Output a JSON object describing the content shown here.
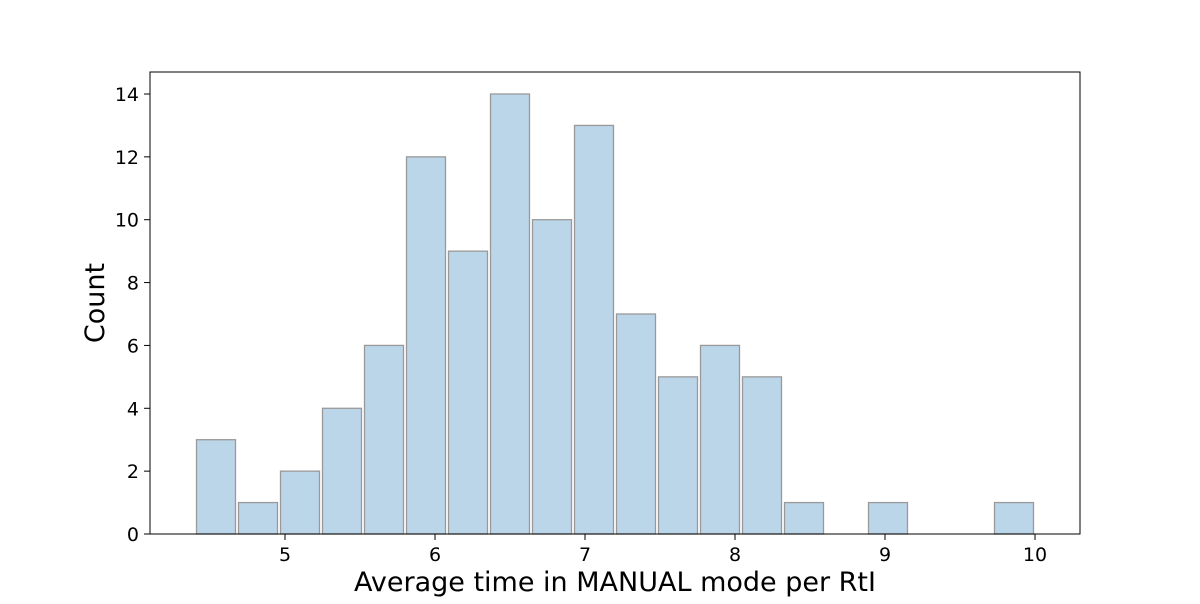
{
  "chart_data": {
    "type": "bar",
    "subtype": "histogram",
    "title": "",
    "xlabel": "Average time in MANUAL mode per RtI",
    "ylabel": "Count",
    "xlim": [
      4.1,
      10.3
    ],
    "ylim": [
      0,
      14.7
    ],
    "x_ticks": [
      5,
      6,
      7,
      8,
      9,
      10
    ],
    "y_ticks": [
      0,
      2,
      4,
      6,
      8,
      10,
      12,
      14
    ],
    "grid": false,
    "legend": "none",
    "bar_color": "#bcd6e9",
    "edge_color": "#999999",
    "bins": [
      {
        "x_start": 4.4,
        "x_end": 4.68,
        "count": 3
      },
      {
        "x_start": 4.68,
        "x_end": 4.96,
        "count": 1
      },
      {
        "x_start": 4.96,
        "x_end": 5.24,
        "count": 2
      },
      {
        "x_start": 5.24,
        "x_end": 5.52,
        "count": 4
      },
      {
        "x_start": 5.52,
        "x_end": 5.8,
        "count": 6
      },
      {
        "x_start": 5.8,
        "x_end": 6.08,
        "count": 12
      },
      {
        "x_start": 6.08,
        "x_end": 6.36,
        "count": 9
      },
      {
        "x_start": 6.36,
        "x_end": 6.64,
        "count": 14
      },
      {
        "x_start": 6.64,
        "x_end": 6.92,
        "count": 10
      },
      {
        "x_start": 6.92,
        "x_end": 7.2,
        "count": 13
      },
      {
        "x_start": 7.2,
        "x_end": 7.48,
        "count": 7
      },
      {
        "x_start": 7.48,
        "x_end": 7.76,
        "count": 5
      },
      {
        "x_start": 7.76,
        "x_end": 8.04,
        "count": 6
      },
      {
        "x_start": 8.04,
        "x_end": 8.32,
        "count": 5
      },
      {
        "x_start": 8.32,
        "x_end": 8.6,
        "count": 1
      },
      {
        "x_start": 8.6,
        "x_end": 8.88,
        "count": 0
      },
      {
        "x_start": 8.88,
        "x_end": 9.16,
        "count": 1
      },
      {
        "x_start": 9.16,
        "x_end": 9.44,
        "count": 0
      },
      {
        "x_start": 9.44,
        "x_end": 9.72,
        "count": 0
      },
      {
        "x_start": 9.72,
        "x_end": 10.0,
        "count": 1
      }
    ]
  }
}
